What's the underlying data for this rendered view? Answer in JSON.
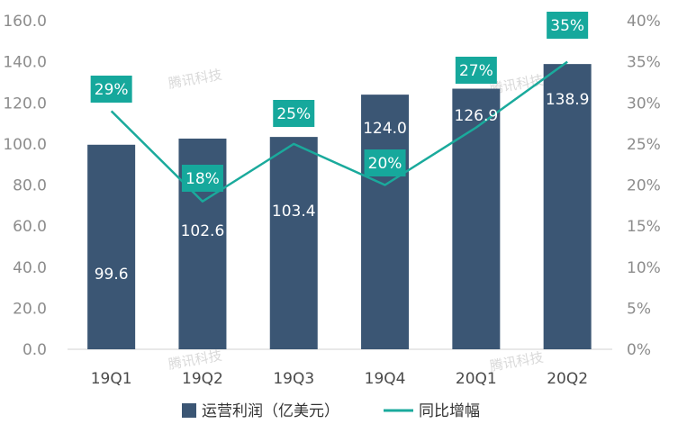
{
  "chart_data": {
    "type": "bar",
    "categories": [
      "19Q1",
      "19Q2",
      "19Q3",
      "19Q4",
      "20Q1",
      "20Q2"
    ],
    "series": [
      {
        "name": "运营利润（亿美元）",
        "type": "bar",
        "axis": "left",
        "values": [
          99.6,
          102.6,
          103.4,
          124.0,
          126.9,
          138.9
        ],
        "labels": [
          "99.6",
          "102.6",
          "103.4",
          "124.0",
          "126.9",
          "138.9"
        ]
      },
      {
        "name": "同比增幅",
        "type": "line",
        "axis": "right",
        "values": [
          29,
          18,
          25,
          20,
          27,
          35
        ],
        "labels": [
          "29%",
          "18%",
          "25%",
          "20%",
          "27%",
          "35%"
        ]
      }
    ],
    "y_left": {
      "range": [
        0,
        160
      ],
      "ticks": [
        "0.0",
        "20.0",
        "40.0",
        "60.0",
        "80.0",
        "100.0",
        "120.0",
        "140.0",
        "160.0"
      ]
    },
    "y_right": {
      "range": [
        0,
        40
      ],
      "ticks": [
        "0%",
        "5%",
        "10%",
        "15%",
        "20%",
        "25%",
        "30%",
        "35%",
        "40%"
      ]
    },
    "grid": false,
    "legend": "bottom",
    "colors": {
      "bar": "#3b5674",
      "line": "#1aaa9c",
      "label_box": "#16a89c"
    }
  },
  "watermark": "腾讯科技"
}
